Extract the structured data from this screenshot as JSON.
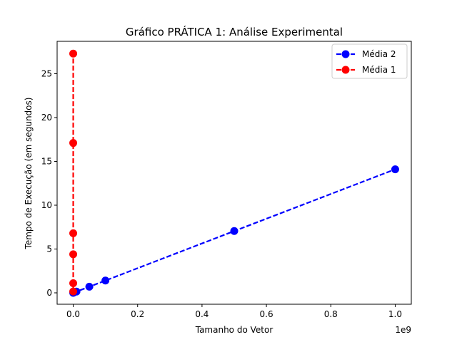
{
  "chart_data": {
    "type": "line",
    "title": "Gráfico PRÁTICA 1: Análise Experimental",
    "xlabel": "Tamanho do Vetor",
    "ylabel": "Tempo de Execução (em segundos)",
    "x_offset_label": "1e9",
    "x_scale": 1000000000,
    "xlim": [
      -0.05,
      1.05
    ],
    "ylim": [
      -1.3,
      28.7
    ],
    "x_ticks": [
      0.0,
      0.2,
      0.4,
      0.6,
      0.8,
      1.0
    ],
    "x_tick_labels": [
      "0.0",
      "0.2",
      "0.4",
      "0.6",
      "0.8",
      "1.0"
    ],
    "y_ticks": [
      0,
      5,
      10,
      15,
      20,
      25
    ],
    "y_tick_labels": [
      "0",
      "5",
      "10",
      "15",
      "20",
      "25"
    ],
    "grid": false,
    "legend_position": "top-right",
    "series": [
      {
        "name": "Média 2",
        "color": "#0000ff",
        "style": "dashed",
        "marker": "circle",
        "x": [
          0.0,
          0.01,
          0.05,
          0.1,
          0.5,
          1.0
        ],
        "y": [
          0.0,
          0.14,
          0.7,
          1.4,
          7.05,
          14.1
        ]
      },
      {
        "name": "Média 1",
        "color": "#ff0000",
        "style": "dashed",
        "marker": "circle",
        "x": [
          0.0,
          0.0,
          0.0,
          0.0,
          0.0,
          0.0
        ],
        "y": [
          0.15,
          1.1,
          4.4,
          6.8,
          17.1,
          27.3
        ]
      }
    ]
  }
}
